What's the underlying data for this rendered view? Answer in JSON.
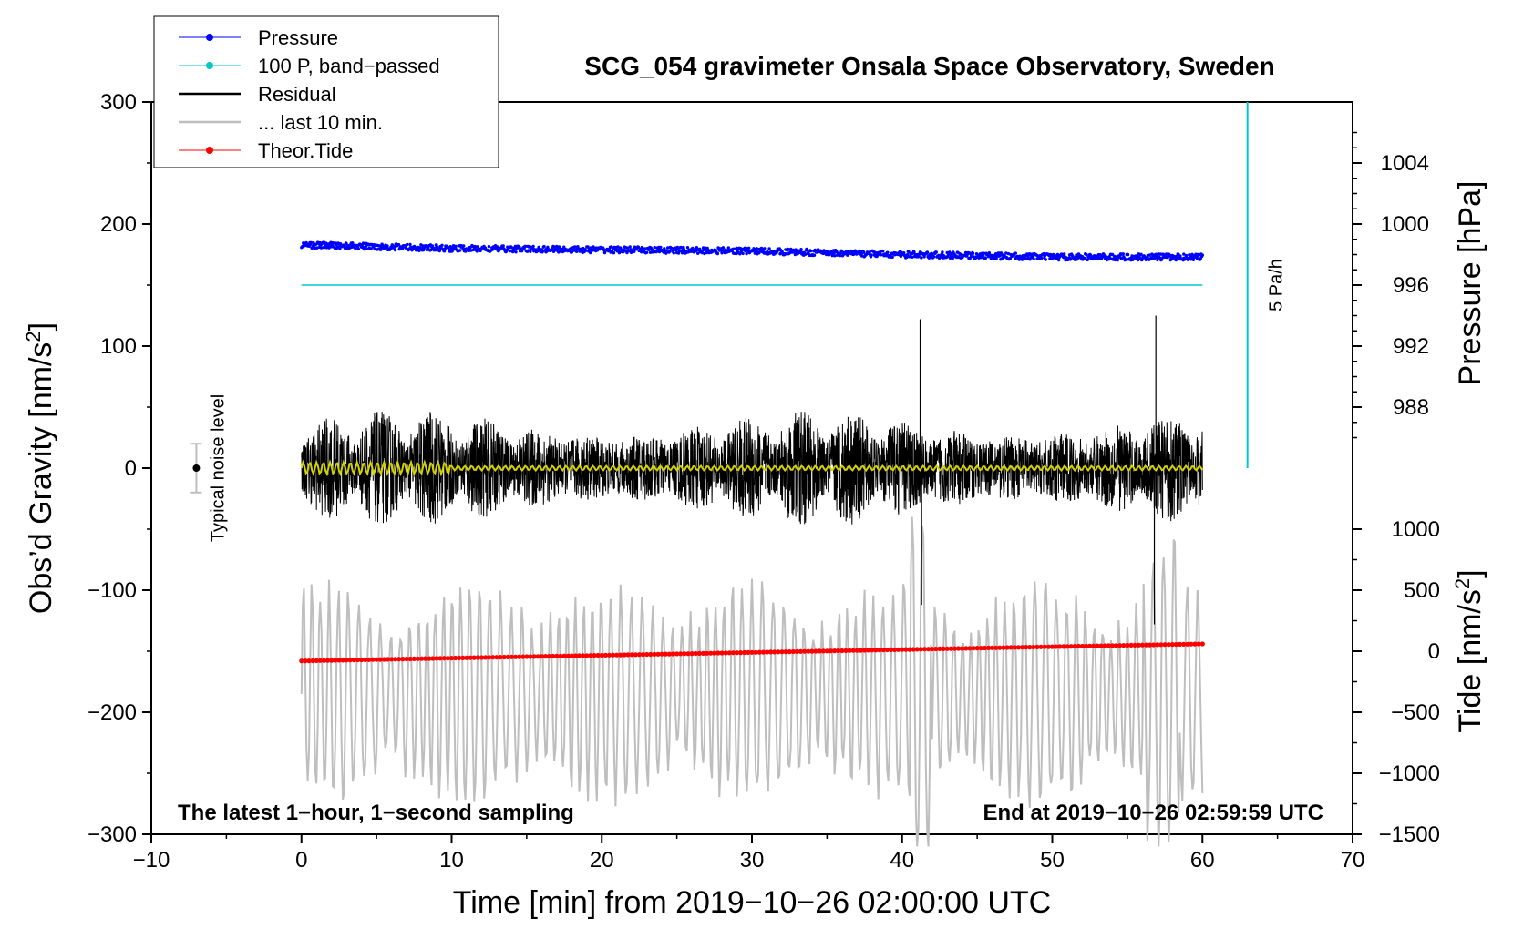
{
  "chart_data": {
    "type": "line",
    "title": "SCG_054 gravimeter Onsala Space Observatory, Sweden",
    "xlabel": "Time [min] from 2019−10−26 02:00:00 UTC",
    "ylabel_left": "Obs’d Gravity [nm/s2]",
    "ylabel_left_text": "Obs’d Gravity [nm/s",
    "ylabel_left_sup": "2",
    "ylabel_left_end": "]",
    "ylabel_pressure": "Pressure [hPa]",
    "ylabel_tide": "Tide [nm/s2]",
    "ylabel_tide_text": "Tide [nm/s",
    "ylabel_tide_sup": "2",
    "ylabel_tide_end": "]",
    "xlim": [
      -10,
      70
    ],
    "ylim": [
      -300,
      300
    ],
    "x_ticks": [
      "−10",
      "0",
      "10",
      "20",
      "30",
      "40",
      "50",
      "60",
      "70"
    ],
    "x_tick_values": [
      -10,
      0,
      10,
      20,
      30,
      40,
      50,
      60,
      70
    ],
    "y_ticks": [
      "300",
      "200",
      "100",
      "0",
      "−100",
      "−200",
      "−300"
    ],
    "y_tick_values": [
      300,
      200,
      100,
      0,
      -100,
      -200,
      -300
    ],
    "pressure_ticks": [
      "1004",
      "1000",
      "996",
      "992",
      "988"
    ],
    "pressure_tick_gravity": [
      250,
      200,
      150,
      100,
      50
    ],
    "tide_ticks": [
      "1000",
      "500",
      "0",
      "−500",
      "−1000",
      "−1500"
    ],
    "tide_tick_gravity": [
      -50,
      -100,
      -150,
      -200,
      -250,
      -300
    ],
    "legend": [
      {
        "label": "Pressure",
        "color": "#0000ff",
        "marker": true
      },
      {
        "label": "100 P, band−passed",
        "color": "#00c8c8",
        "marker": true
      },
      {
        "label": "Residual",
        "color": "#000000",
        "marker": false
      },
      {
        "label": "... last 10 min.",
        "color": "#bebebe",
        "marker": false
      },
      {
        "label": "Theor.Tide",
        "color": "#ff0000",
        "marker": true
      }
    ],
    "series": [
      {
        "name": "Pressure",
        "color": "#0000ff",
        "x": [
          0,
          10,
          20,
          30,
          40,
          50,
          60
        ],
        "y_gravity_units": [
          183,
          180,
          179,
          178,
          175,
          173,
          173
        ],
        "style": "dots"
      },
      {
        "name": "100 P, band-passed",
        "color": "#00c8c8",
        "x": [
          0,
          60
        ],
        "y_gravity_units": [
          150,
          150
        ]
      },
      {
        "name": "Residual",
        "color": "#000000",
        "x_range": [
          0,
          60
        ],
        "center": 0,
        "amplitude_approx": 40,
        "peaks": [
          {
            "x": 41.2,
            "y": 122
          },
          {
            "x": 56.9,
            "y": 125
          },
          {
            "x": 56.8,
            "y": -128
          },
          {
            "x": 41.3,
            "y": -112
          }
        ]
      },
      {
        "name": "... last 10 min.",
        "color": "#bebebe",
        "x_range": [
          0,
          60
        ],
        "center": -185,
        "amplitude_approx": 60
      },
      {
        "name": "Theor.Tide",
        "color": "#ff0000",
        "x": [
          0,
          60
        ],
        "y_gravity_units": [
          -158,
          -144
        ]
      },
      {
        "name": "Band-passed residual",
        "color": "#d2d200",
        "x_range": [
          0,
          60
        ],
        "center": 0,
        "amplitude_approx": 3
      }
    ],
    "vertical_line": {
      "x": 63,
      "y_from": 300,
      "y_to": 0,
      "color": "#00c8c8",
      "label": "5 Pa/h"
    },
    "noise_indicator": {
      "x": -7,
      "value": 0,
      "range": [
        -20,
        20
      ],
      "label": "Typical noise level"
    },
    "footer_left": "The latest 1−hour, 1−second sampling",
    "footer_right": "End at 2019−10−26 02:59:59 UTC"
  }
}
